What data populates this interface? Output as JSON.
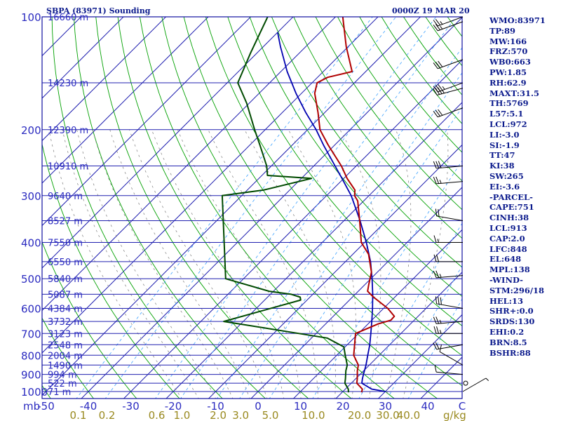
{
  "header": {
    "title": "SBPA (83971) Sounding",
    "time": "0000Z 19 MAR 20"
  },
  "colors": {
    "frame": "#1010a0",
    "isobar": "#2020b0",
    "isotherm": "#2020b0",
    "dry_adiabat": "#00a000",
    "moist_adiabat": "#8a8a8a",
    "mixing_ratio": "#3aa0ff",
    "temperature": "#b00000",
    "dewpoint": "#004a00",
    "parcel": "#0000b0",
    "wind_barb": "#000000",
    "axis_text": "#2c2cc0",
    "mixing_text": "#9a8a20",
    "index_text": "#0b1a8c"
  },
  "chart_data": {
    "type": "skew-t",
    "pressure_unit": "mb",
    "temperature_unit": "C",
    "pressure_ticks": [
      "100",
      "200",
      "300",
      "400",
      "500",
      "600",
      "700",
      "800",
      "900",
      "1000"
    ],
    "temperature_ticks": [
      "-50",
      "-40",
      "-30",
      "-20",
      "-10",
      "0",
      "10",
      "20",
      "30",
      "40",
      "C"
    ],
    "mixing_ratio_ticks": [
      "0.1",
      "0.2",
      "0.6",
      "1.0",
      "2.0",
      "3.0",
      "5.0",
      "10.0",
      "20.0",
      "30.0",
      "40.0"
    ],
    "mixing_ratio_unit": "g/kg",
    "height_labels": [
      {
        "p": 100,
        "label": "16660 m"
      },
      {
        "p": 150,
        "label": "14230 m"
      },
      {
        "p": 200,
        "label": "12390 m"
      },
      {
        "p": 250,
        "label": "10910 m"
      },
      {
        "p": 300,
        "label": "9640 m"
      },
      {
        "p": 350,
        "label": "8527 m"
      },
      {
        "p": 400,
        "label": "7550 m"
      },
      {
        "p": 450,
        "label": "6550 m"
      },
      {
        "p": 500,
        "label": "5840 m"
      },
      {
        "p": 550,
        "label": "5087 m"
      },
      {
        "p": 600,
        "label": "4384 m"
      },
      {
        "p": 650,
        "label": "3732 m"
      },
      {
        "p": 700,
        "label": "3123 m"
      },
      {
        "p": 750,
        "label": "2548 m"
      },
      {
        "p": 800,
        "label": "2004 m"
      },
      {
        "p": 850,
        "label": "1490 m"
      },
      {
        "p": 900,
        "label": "994 m"
      },
      {
        "p": 950,
        "label": "522 m"
      },
      {
        "p": 1000,
        "label": "71 m"
      }
    ],
    "temperature_profile": [
      {
        "p": 1005,
        "t": 24.6
      },
      {
        "p": 985,
        "t": 24.0
      },
      {
        "p": 950,
        "t": 21.3
      },
      {
        "p": 925,
        "t": 20.4
      },
      {
        "p": 880,
        "t": 18.5
      },
      {
        "p": 850,
        "t": 17.4
      },
      {
        "p": 800,
        "t": 14.0
      },
      {
        "p": 700,
        "t": 9.3
      },
      {
        "p": 660,
        "t": 12.4
      },
      {
        "p": 645,
        "t": 14.5
      },
      {
        "p": 630,
        "t": 14.4
      },
      {
        "p": 600,
        "t": 11.0
      },
      {
        "p": 560,
        "t": 5.0
      },
      {
        "p": 540,
        "t": 2.2
      },
      {
        "p": 520,
        "t": 1.0
      },
      {
        "p": 480,
        "t": -1.4
      },
      {
        "p": 430,
        "t": -6.3
      },
      {
        "p": 400,
        "t": -10.8
      },
      {
        "p": 350,
        "t": -16.3
      },
      {
        "p": 310,
        "t": -21.4
      },
      {
        "p": 300,
        "t": -23.4
      },
      {
        "p": 290,
        "t": -24.6
      },
      {
        "p": 270,
        "t": -29.2
      },
      {
        "p": 250,
        "t": -33.5
      },
      {
        "p": 220,
        "t": -41.5
      },
      {
        "p": 200,
        "t": -47.1
      },
      {
        "p": 180,
        "t": -51.6
      },
      {
        "p": 160,
        "t": -56.9
      },
      {
        "p": 150,
        "t": -58.8
      },
      {
        "p": 145,
        "t": -57.6
      },
      {
        "p": 140,
        "t": -53.2
      },
      {
        "p": 120,
        "t": -60.5
      },
      {
        "p": 100,
        "t": -68.3
      }
    ],
    "dewpoint_profile": [
      {
        "p": 1005,
        "t": 21.5
      },
      {
        "p": 985,
        "t": 20.7
      },
      {
        "p": 950,
        "t": 18.5
      },
      {
        "p": 925,
        "t": 17.6
      },
      {
        "p": 880,
        "t": 15.8
      },
      {
        "p": 850,
        "t": 14.8
      },
      {
        "p": 800,
        "t": 12.0
      },
      {
        "p": 760,
        "t": 9.7
      },
      {
        "p": 720,
        "t": 3.7
      },
      {
        "p": 700,
        "t": -4.0
      },
      {
        "p": 650,
        "t": -24.6
      },
      {
        "p": 570,
        "t": -11.5
      },
      {
        "p": 560,
        "t": -12.3
      },
      {
        "p": 550,
        "t": -15.1
      },
      {
        "p": 540,
        "t": -21.0
      },
      {
        "p": 500,
        "t": -34.2
      },
      {
        "p": 300,
        "t": -54.6
      },
      {
        "p": 290,
        "t": -46.2
      },
      {
        "p": 270,
        "t": -37.6
      },
      {
        "p": 265,
        "t": -48.7
      },
      {
        "p": 250,
        "t": -51.1
      },
      {
        "p": 220,
        "t": -57.6
      },
      {
        "p": 200,
        "t": -62.5
      },
      {
        "p": 170,
        "t": -70.6
      },
      {
        "p": 150,
        "t": -77.5
      },
      {
        "p": 140,
        "t": -79.0
      },
      {
        "p": 125,
        "t": -81.5
      },
      {
        "p": 100,
        "t": -86.0
      }
    ],
    "parcel_profile": [
      {
        "p": 1000,
        "t": 30.0
      },
      {
        "p": 985,
        "t": 26.2
      },
      {
        "p": 950,
        "t": 22.5
      },
      {
        "p": 925,
        "t": 21.6
      },
      {
        "p": 900,
        "t": 20.8
      },
      {
        "p": 850,
        "t": 19.2
      },
      {
        "p": 800,
        "t": 17.3
      },
      {
        "p": 750,
        "t": 15.3
      },
      {
        "p": 700,
        "t": 12.9
      },
      {
        "p": 650,
        "t": 10.3
      },
      {
        "p": 600,
        "t": 7.4
      },
      {
        "p": 550,
        "t": 4.1
      },
      {
        "p": 500,
        "t": 0.3
      },
      {
        "p": 450,
        "t": -4.1
      },
      {
        "p": 400,
        "t": -9.6
      },
      {
        "p": 350,
        "t": -16.2
      },
      {
        "p": 300,
        "t": -24.2
      },
      {
        "p": 270,
        "t": -30.4
      },
      {
        "p": 250,
        "t": -35.0
      },
      {
        "p": 220,
        "t": -42.6
      },
      {
        "p": 200,
        "t": -48.0
      },
      {
        "p": 180,
        "t": -54.5
      },
      {
        "p": 160,
        "t": -61.3
      },
      {
        "p": 140,
        "t": -68.5
      },
      {
        "p": 120,
        "t": -76.0
      },
      {
        "p": 110,
        "t": -80.0
      }
    ],
    "wind_barbs": [
      {
        "p": 100,
        "dir": 250,
        "spd": 25
      },
      {
        "p": 103,
        "dir": 250,
        "spd": 25
      },
      {
        "p": 130,
        "dir": 250,
        "spd": 30
      },
      {
        "p": 150,
        "dir": 250,
        "spd": 35
      },
      {
        "p": 155,
        "dir": 255,
        "spd": 35
      },
      {
        "p": 175,
        "dir": 250,
        "spd": 30
      },
      {
        "p": 250,
        "dir": 265,
        "spd": 30
      },
      {
        "p": 275,
        "dir": 265,
        "spd": 25
      },
      {
        "p": 350,
        "dir": 280,
        "spd": 20
      },
      {
        "p": 400,
        "dir": 270,
        "spd": 15
      },
      {
        "p": 450,
        "dir": 270,
        "spd": 20
      },
      {
        "p": 490,
        "dir": 265,
        "spd": 25
      },
      {
        "p": 600,
        "dir": 280,
        "spd": 30
      },
      {
        "p": 650,
        "dir": 265,
        "spd": 25
      },
      {
        "p": 700,
        "dir": 270,
        "spd": 25
      },
      {
        "p": 750,
        "dir": 260,
        "spd": 20
      },
      {
        "p": 850,
        "dir": 300,
        "spd": 10
      },
      {
        "p": 900,
        "dir": 275,
        "spd": 10
      },
      {
        "p": 950,
        "dir": 0,
        "spd": 0
      },
      {
        "p": 1000,
        "dir": 60,
        "spd": 5
      }
    ]
  },
  "indices": [
    "WMO:83971",
    "TP:89",
    "MW:166",
    "FRZ:570",
    "WB0:663",
    "PW:1.85",
    "RH:62.9",
    "MAXT:31.5",
    "TH:5769",
    "L57:5.1",
    "LCL:972",
    "LI:-3.0",
    "SI:-1.9",
    "TT:47",
    "KI:38",
    "SW:265",
    "EI:-3.6",
    "-PARCEL-",
    "CAPE:751",
    "CINH:38",
    "LCL:913",
    "CAP:2.0",
    "LFC:848",
    "EL:648",
    "MPL:138",
    "-WIND-",
    "STM:296/18",
    "HEL:13",
    "SHR+:0.0",
    "SRDS:130",
    "EHI:0.2",
    "BRN:8.5",
    "BSHR:88"
  ]
}
